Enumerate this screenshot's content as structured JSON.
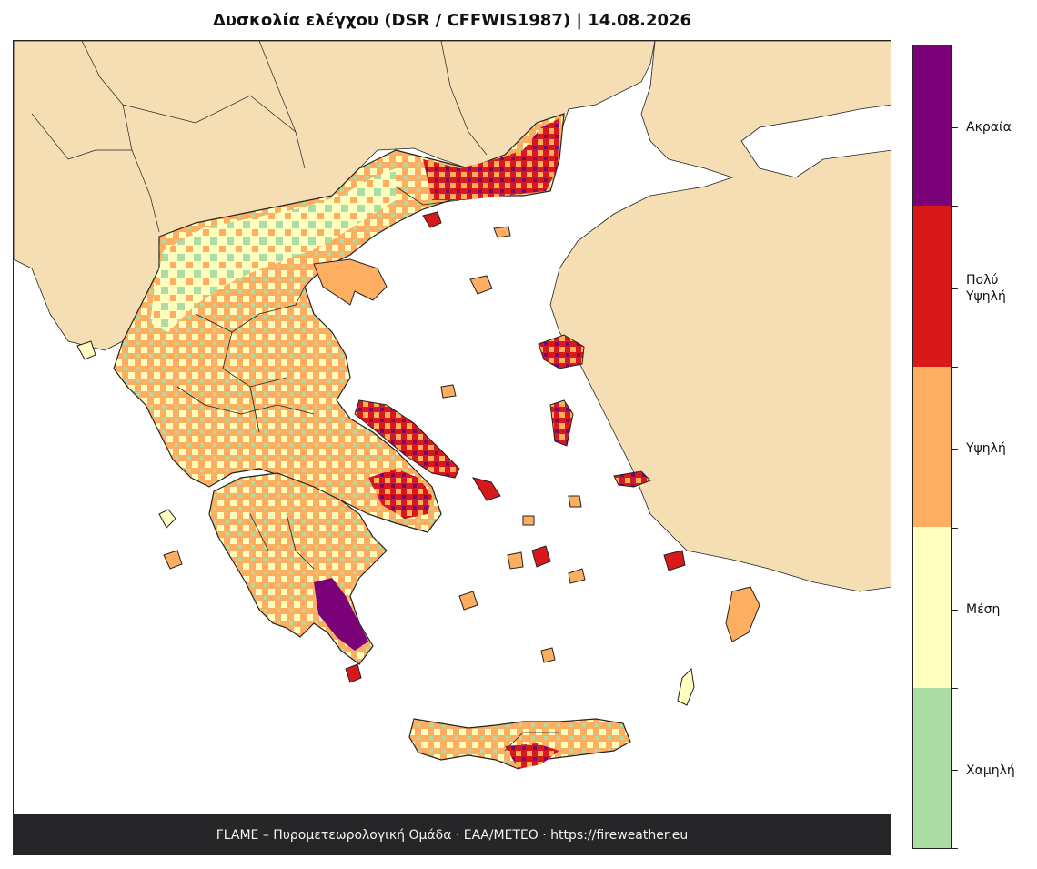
{
  "title": "Δυσκολία ελέγχου (DSR / CFFWIS1987)  |  14.08.2026",
  "footer": "FLAME – Πυρομετεωρολογική Ομάδα · ΕΑΑ/METEO · https://fireweather.eu",
  "legend": {
    "classes": [
      {
        "label": "Ακραία",
        "color": "#7a0177"
      },
      {
        "label": "Πολύ\nΥψηλή",
        "color": "#d7191c"
      },
      {
        "label": "Υψηλή",
        "color": "#fdae61"
      },
      {
        "label": "Μέση",
        "color": "#ffffbf"
      },
      {
        "label": "Χαμηλή",
        "color": "#abdda4"
      }
    ]
  },
  "colors": {
    "land_outside": "#f5deb3",
    "sea": "#ffffff",
    "border": "#222222"
  }
}
